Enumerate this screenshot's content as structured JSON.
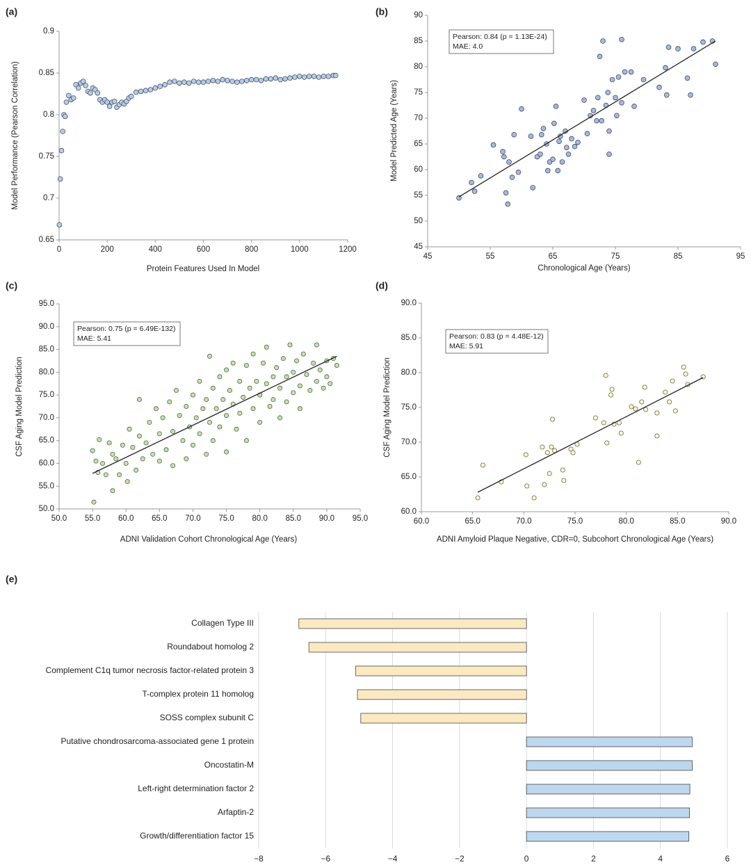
{
  "chart_data": [
    {
      "type": "scatter",
      "label": "(a)",
      "x_label": "Protein Features Used In Model",
      "y_label": "Model Performance (Pearson Correlation)",
      "color": "#b8cce4",
      "stroke": "#44546a",
      "xlim": [
        0,
        1200
      ],
      "xticks": [
        0,
        200,
        400,
        600,
        800,
        1000,
        1200
      ],
      "ylim": [
        0.65,
        0.9
      ],
      "yticks": [
        0.65,
        0.7,
        0.75,
        0.8,
        0.85,
        0.9
      ],
      "x": [
        1,
        5,
        10,
        15,
        20,
        25,
        30,
        40,
        50,
        60,
        70,
        80,
        90,
        100,
        110,
        120,
        130,
        140,
        150,
        160,
        170,
        180,
        190,
        200,
        210,
        220,
        230,
        240,
        250,
        260,
        270,
        280,
        290,
        300,
        320,
        340,
        360,
        380,
        400,
        420,
        440,
        460,
        480,
        500,
        520,
        540,
        560,
        580,
        600,
        620,
        640,
        660,
        680,
        700,
        720,
        740,
        760,
        780,
        800,
        820,
        840,
        860,
        880,
        900,
        920,
        940,
        960,
        980,
        1000,
        1020,
        1040,
        1060,
        1080,
        1100,
        1120,
        1140,
        1150
      ],
      "values": [
        0.668,
        0.723,
        0.757,
        0.78,
        0.8,
        0.798,
        0.815,
        0.823,
        0.818,
        0.82,
        0.836,
        0.832,
        0.838,
        0.84,
        0.835,
        0.828,
        0.826,
        0.832,
        0.83,
        0.826,
        0.818,
        0.815,
        0.818,
        0.815,
        0.81,
        0.815,
        0.816,
        0.809,
        0.812,
        0.815,
        0.813,
        0.816,
        0.82,
        0.822,
        0.827,
        0.828,
        0.829,
        0.83,
        0.832,
        0.834,
        0.836,
        0.839,
        0.84,
        0.838,
        0.839,
        0.838,
        0.84,
        0.839,
        0.839,
        0.84,
        0.841,
        0.84,
        0.842,
        0.841,
        0.84,
        0.839,
        0.84,
        0.841,
        0.842,
        0.842,
        0.841,
        0.843,
        0.843,
        0.844,
        0.842,
        0.843,
        0.844,
        0.845,
        0.846,
        0.845,
        0.846,
        0.846,
        0.845,
        0.846,
        0.846,
        0.847,
        0.847
      ]
    },
    {
      "type": "scatter",
      "label": "(b)",
      "x_label": "Chronological Age (Years)",
      "y_label": "Model Predicted Age (Years)",
      "color": "#a9b9da",
      "stroke": "#3b4a6b",
      "annotation": [
        "Pearson: 0.84 (p = 1.13E-24)",
        "MAE: 4.0"
      ],
      "xlim": [
        45,
        95
      ],
      "xticks": [
        45,
        55,
        65,
        75,
        85,
        95
      ],
      "ylim": [
        45,
        90
      ],
      "yticks": [
        45,
        50,
        55,
        60,
        65,
        70,
        75,
        80,
        85,
        90
      ],
      "x": [
        50,
        52,
        52.5,
        53.5,
        55.5,
        57,
        57.2,
        57.5,
        57.8,
        58,
        58.5,
        58.8,
        59.5,
        60,
        61.5,
        61.8,
        62.5,
        63,
        63.2,
        63.5,
        64,
        64.2,
        64.5,
        65,
        65.2,
        65.5,
        65.8,
        66,
        66.2,
        66.5,
        67,
        67.2,
        67.5,
        68,
        68.5,
        69,
        70,
        70.5,
        71,
        71.5,
        72,
        72.2,
        72.5,
        72.8,
        73,
        73.5,
        73.8,
        74,
        74,
        74.5,
        75,
        75.2,
        75.5,
        76,
        76,
        76.5,
        77.5,
        78,
        79.5,
        82,
        83,
        83.2,
        83.5,
        85,
        86.5,
        87,
        87.5,
        89,
        90.5,
        91
      ],
      "values": [
        54.5,
        57.5,
        55.8,
        58.8,
        64.8,
        63.5,
        62.5,
        55.5,
        53.3,
        61.5,
        58.5,
        66.8,
        59.5,
        71.8,
        66.5,
        56.5,
        62.5,
        63,
        66.8,
        68,
        65,
        59.8,
        61.5,
        62,
        69,
        72.3,
        59.8,
        65.5,
        66.5,
        61.5,
        67.5,
        64.3,
        63,
        66,
        64.5,
        65.3,
        73.5,
        67,
        70.5,
        71.5,
        69.5,
        74,
        82,
        69.5,
        85,
        72.5,
        75,
        63,
        67.5,
        77.5,
        74,
        70.5,
        78,
        73,
        85.3,
        79,
        79,
        72.3,
        77.5,
        76,
        79.8,
        74.5,
        83.8,
        83.5,
        77.8,
        74.5,
        83.5,
        84.8,
        85,
        80.5
      ],
      "trend": {
        "x": [
          50,
          91
        ],
        "values": [
          54.7,
          85
        ]
      }
    },
    {
      "type": "scatter",
      "label": "(c)",
      "x_label": "ADNI Validation Cohort Chronological Age (Years)",
      "y_label": "CSF Aging Model Prediction",
      "color": "#c6e0b4",
      "stroke": "#4a6b3a",
      "annotation": [
        "Pearson: 0.75 (p = 6.49E-132)",
        "MAE: 5.41"
      ],
      "xlim": [
        50,
        95
      ],
      "xticks": [
        {
          "value": 50,
          "label": "50.0"
        },
        {
          "value": 55,
          "label": "55.0"
        },
        {
          "value": 60,
          "label": "60.0"
        },
        {
          "value": 65,
          "label": "65.0"
        },
        {
          "value": 70,
          "label": "70.0"
        },
        {
          "value": 75,
          "label": "75.0"
        },
        {
          "value": 80,
          "label": "80.0"
        },
        {
          "value": 85,
          "label": "85.0"
        },
        {
          "value": 90,
          "label": "90.0"
        },
        {
          "value": 95,
          "label": "95.0"
        }
      ],
      "ylim": [
        50,
        95
      ],
      "yticks": [
        {
          "value": 50,
          "label": "50.0"
        },
        {
          "value": 55,
          "label": "55.0"
        },
        {
          "value": 60,
          "label": "60.0"
        },
        {
          "value": 65,
          "label": "65.0"
        },
        {
          "value": 70,
          "label": "70.0"
        },
        {
          "value": 75,
          "label": "75.0"
        },
        {
          "value": 80,
          "label": "80.0"
        },
        {
          "value": 85,
          "label": "85.0"
        },
        {
          "value": 90,
          "label": "90.0"
        },
        {
          "value": 95,
          "label": "95.0"
        }
      ],
      "x": [
        55,
        55.2,
        55.5,
        55.8,
        56,
        56.5,
        57,
        57.5,
        58,
        58,
        58.5,
        59,
        59.5,
        60,
        60.2,
        60.5,
        61,
        61.5,
        62,
        62,
        62.5,
        63,
        63.5,
        64,
        64.5,
        65,
        65,
        65.5,
        66,
        66.5,
        67,
        67,
        67.5,
        68,
        68.5,
        69,
        69,
        69.5,
        70,
        70,
        70.5,
        71,
        71,
        71.5,
        72,
        72,
        72.5,
        72.5,
        73,
        73,
        73.5,
        74,
        74,
        74.5,
        75,
        75,
        75,
        75.5,
        76,
        76,
        76.5,
        77,
        77,
        77.5,
        78,
        78,
        78.5,
        79,
        79,
        79.5,
        80,
        80,
        80.5,
        81,
        81,
        81.5,
        82,
        82,
        82.5,
        83,
        83,
        83.5,
        84,
        84,
        84.5,
        85,
        85,
        85.5,
        86,
        86,
        86.5,
        87,
        87.5,
        88,
        88.5,
        88.5,
        89,
        89.5,
        90,
        90,
        90.5,
        91,
        91.5
      ],
      "values": [
        62.8,
        51.5,
        60.5,
        58,
        65.2,
        60,
        57.5,
        64.5,
        62,
        54,
        61,
        57.5,
        64,
        60,
        56,
        67.5,
        63.5,
        58.5,
        74,
        66,
        61,
        64.5,
        69,
        62,
        72,
        66.5,
        60.5,
        70,
        63,
        73.5,
        67,
        59.5,
        76,
        70.5,
        65,
        72.5,
        61,
        68,
        75,
        64,
        70,
        78,
        66.5,
        72,
        74,
        62,
        83.5,
        69,
        76.5,
        65,
        72,
        79,
        68,
        74,
        70.5,
        80.5,
        62.5,
        76,
        73,
        82,
        67.5,
        78,
        71,
        74.5,
        81.5,
        65,
        76.5,
        72,
        84,
        78,
        75,
        69,
        82,
        77.5,
        85.5,
        72.5,
        79,
        74,
        81,
        76.5,
        70,
        83,
        79,
        73.5,
        86,
        80,
        75.5,
        82.5,
        77,
        72,
        84,
        79.5,
        76,
        82,
        86,
        78,
        80.5,
        76.5,
        82.5,
        79,
        77.5,
        83,
        81.5
      ],
      "trend": {
        "x": [
          55,
          91.5
        ],
        "values": [
          57.8,
          83.5
        ]
      }
    },
    {
      "type": "scatter",
      "label": "(d)",
      "x_label": "ADNI Amyloid Plaque Negative, CDR=0, Subcohort Chronological Age (Years)",
      "y_label": "CSF Aging Model Prediction",
      "color": "#fdf6d8",
      "stroke": "#6b6b3a",
      "annotation": [
        "Pearson: 0.83 (p = 4.48E-12)",
        "MAE: 5.91"
      ],
      "xlim": [
        60,
        90
      ],
      "xticks": [
        {
          "value": 60,
          "label": "60.0"
        },
        {
          "value": 65,
          "label": "65.0"
        },
        {
          "value": 70,
          "label": "70.0"
        },
        {
          "value": 75,
          "label": "75.0"
        },
        {
          "value": 80,
          "label": "80.0"
        },
        {
          "value": 85,
          "label": "85.0"
        },
        {
          "value": 90,
          "label": "90.0"
        }
      ],
      "ylim": [
        60,
        90
      ],
      "yticks": [
        {
          "value": 60,
          "label": "60.0"
        },
        {
          "value": 65,
          "label": "65.0"
        },
        {
          "value": 70,
          "label": "70.0"
        },
        {
          "value": 75,
          "label": "75.0"
        },
        {
          "value": 80,
          "label": "80.0"
        },
        {
          "value": 85,
          "label": "85.0"
        },
        {
          "value": 90,
          "label": "90.0"
        }
      ],
      "x": [
        65.5,
        66,
        67.8,
        70.2,
        70.3,
        71,
        71.8,
        72,
        72.3,
        72.5,
        72.7,
        73,
        72.8,
        73.8,
        73.9,
        74.6,
        74.8,
        75.2,
        77,
        77.8,
        78,
        78.1,
        78.5,
        78.6,
        78.8,
        79.3,
        79.5,
        80.5,
        80.9,
        81.2,
        81.5,
        81.8,
        81.9,
        83,
        83,
        83.8,
        84.2,
        84.5,
        84.8,
        85.6,
        85.8,
        86,
        87.5
      ],
      "values": [
        62,
        66.7,
        64.3,
        68.2,
        63.7,
        62,
        69.3,
        63.9,
        68.5,
        65.5,
        69.3,
        68.8,
        73.3,
        66,
        64.5,
        69,
        68.5,
        69.7,
        73.5,
        72.8,
        79.6,
        69.9,
        76.8,
        77.6,
        72.6,
        72.8,
        71.3,
        75.1,
        74.8,
        67.1,
        75.8,
        77.9,
        74.7,
        74.2,
        70.9,
        77.2,
        75.8,
        78.8,
        74.5,
        80.8,
        79.8,
        78.3,
        79.4
      ],
      "trend": {
        "x": [
          65.5,
          87.5
        ],
        "values": [
          62.8,
          79.3
        ]
      }
    },
    {
      "type": "hbar",
      "label": "(e)",
      "grid": true,
      "categories": [
        "Collagen Type III",
        "Roundabout homolog 2",
        "Complement C1q tumor necrosis factor-related protein 3",
        "T-complex protein 11 homolog",
        "SOSS complex subunit C",
        "Putative chondrosarcoma-associated gene 1 protein",
        "Oncostatin-M",
        "Left-right determination factor 2",
        "Arfaptin-2",
        "Growth/differentiation factor 15"
      ],
      "values": [
        -6.8,
        -6.5,
        -5.1,
        -5.05,
        -4.95,
        4.95,
        4.95,
        4.88,
        4.87,
        4.85
      ],
      "colors": [
        "#fbe9c2",
        "#fbe9c2",
        "#fbe9c2",
        "#fbe9c2",
        "#fbe9c2",
        "#bdd7ee",
        "#bdd7ee",
        "#bdd7ee",
        "#bdd7ee",
        "#bdd7ee"
      ],
      "xlim": [
        -8,
        6
      ],
      "xticks": [
        {
          "value": -8,
          "label": "−8"
        },
        {
          "value": -6,
          "label": "−6"
        },
        {
          "value": -4,
          "label": "−4"
        },
        {
          "value": -2,
          "label": "−2"
        },
        0,
        2,
        4,
        6
      ]
    }
  ]
}
